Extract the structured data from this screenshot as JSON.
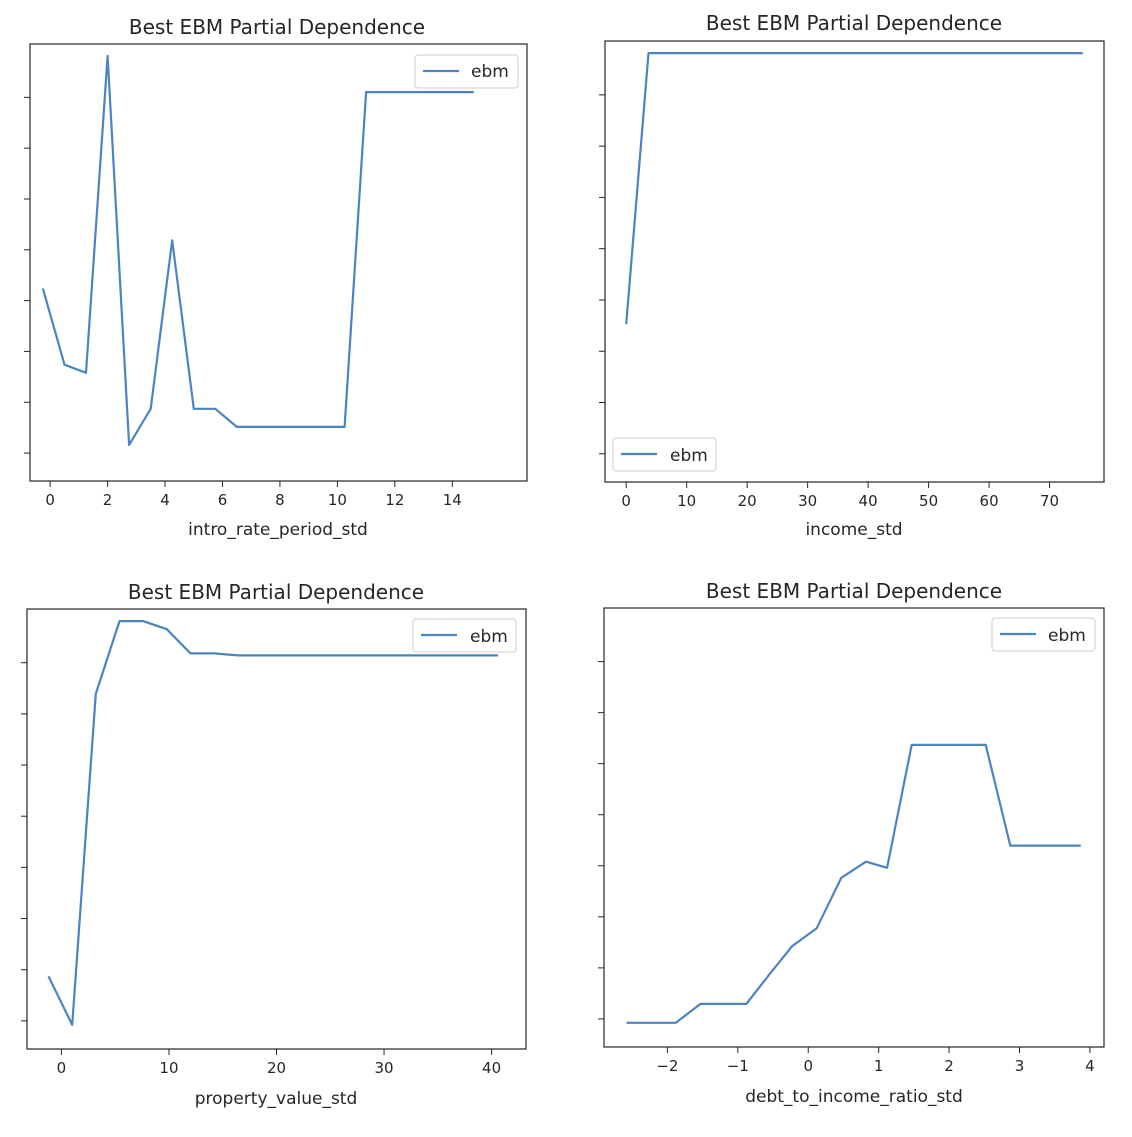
{
  "line_color": "#4c84c0",
  "chart_data": [
    {
      "type": "line",
      "title": "Best EBM Partial Dependence",
      "xlabel": "intro_rate_period_std",
      "ylabel": "",
      "xlim": [
        -0.7,
        16.6
      ],
      "ylim": [
        -0.06,
        1.03
      ],
      "yticks_shown": false,
      "xticks": [
        0,
        2,
        4,
        6,
        8,
        10,
        12,
        14
      ],
      "xtick_labels": [
        "0",
        "2",
        "4",
        "6",
        "8",
        "10",
        "12",
        "14"
      ],
      "legend": {
        "position": "top-right",
        "entries": [
          "ebm"
        ]
      },
      "series": [
        {
          "name": "ebm",
          "x": [
            -0.25,
            0.5,
            1.25,
            2.0,
            2.75,
            3.5,
            4.25,
            5.0,
            5.75,
            6.5,
            7.25,
            8.0,
            8.75,
            9.5,
            10.25,
            11.0,
            11.75,
            12.5,
            13.25,
            14.0,
            14.75
          ],
          "y": [
            0.42,
            0.23,
            0.21,
            1.0,
            0.03,
            0.12,
            0.54,
            0.12,
            0.12,
            0.075,
            0.075,
            0.075,
            0.075,
            0.075,
            0.075,
            0.91,
            0.91,
            0.91,
            0.91,
            0.91,
            0.91
          ]
        }
      ]
    },
    {
      "type": "line",
      "title": "Best EBM Partial Dependence",
      "xlabel": "income_std",
      "ylabel": "",
      "xlim": [
        -3.5,
        79
      ],
      "ylim": [
        -0.06,
        1.03
      ],
      "yticks_shown": false,
      "xticks": [
        0,
        10,
        20,
        30,
        40,
        50,
        60,
        70
      ],
      "xtick_labels": [
        "0",
        "10",
        "20",
        "30",
        "40",
        "50",
        "60",
        "70"
      ],
      "legend": {
        "position": "bottom-left",
        "entries": [
          "ebm"
        ]
      },
      "series": [
        {
          "name": "ebm",
          "x": [
            0,
            3.7,
            10,
            20,
            30,
            40,
            50,
            60,
            70,
            75.5
          ],
          "y": [
            0.33,
            1.0,
            1.0,
            1.0,
            1.0,
            1.0,
            1.0,
            1.0,
            1.0,
            1.0
          ]
        }
      ]
    },
    {
      "type": "line",
      "title": "Best EBM Partial Dependence",
      "xlabel": "property_value_std",
      "ylabel": "",
      "xlim": [
        -3.2,
        43.2
      ],
      "ylim": [
        -0.06,
        1.03
      ],
      "yticks_shown": false,
      "xticks": [
        0,
        10,
        20,
        30,
        40
      ],
      "xtick_labels": [
        "0",
        "10",
        "20",
        "30",
        "40"
      ],
      "legend": {
        "position": "top-right",
        "entries": [
          "ebm"
        ]
      },
      "series": [
        {
          "name": "ebm",
          "x": [
            -1.2,
            1.0,
            3.2,
            5.4,
            7.6,
            9.8,
            12.0,
            14.2,
            16.4,
            18.6,
            20.8,
            23.0,
            25.2,
            27.4,
            29.6,
            31.8,
            34.0,
            36.2,
            38.4,
            40.6
          ],
          "y": [
            0.12,
            0.0,
            0.82,
            1.0,
            1.0,
            0.98,
            0.92,
            0.92,
            0.915,
            0.915,
            0.915,
            0.915,
            0.915,
            0.915,
            0.915,
            0.915,
            0.915,
            0.915,
            0.915,
            0.915
          ]
        }
      ]
    },
    {
      "type": "line",
      "title": "Best EBM Partial Dependence",
      "xlabel": "debt_to_income_ratio_std",
      "ylabel": "",
      "xlim": [
        -2.9,
        4.2
      ],
      "ylim": [
        -0.06,
        1.03
      ],
      "yticks_shown": false,
      "xticks": [
        -2,
        -1,
        0,
        1,
        2,
        3,
        4
      ],
      "xtick_labels": [
        "−2",
        "−1",
        "0",
        "1",
        "2",
        "3",
        "4"
      ],
      "legend": {
        "position": "top-right",
        "entries": [
          "ebm"
        ]
      },
      "series": [
        {
          "name": "ebm",
          "x": [
            -2.58,
            -2.23,
            -1.88,
            -1.53,
            -1.18,
            -0.88,
            -0.53,
            -0.23,
            0.12,
            0.47,
            0.82,
            1.12,
            1.47,
            1.82,
            2.17,
            2.52,
            2.87,
            3.17,
            3.52,
            3.87
          ],
          "y": [
            0.0,
            0.0,
            0.0,
            0.047,
            0.047,
            0.047,
            0.125,
            0.19,
            0.235,
            0.36,
            0.4,
            0.385,
            0.69,
            0.69,
            0.69,
            0.69,
            0.44,
            0.44,
            0.44,
            0.44
          ]
        }
      ]
    }
  ]
}
